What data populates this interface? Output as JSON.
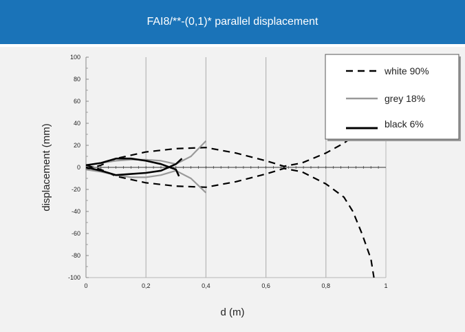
{
  "header": {
    "title": "FAI8/**-(0,1)* parallel displacement"
  },
  "colors": {
    "header_bg": "#1a73b8",
    "panel_bg": "#f2f2f2",
    "white": "#000000",
    "grey": "#999999",
    "black": "#000000"
  },
  "chart_data": {
    "type": "line",
    "title": "",
    "xlabel": "d (m)",
    "ylabel": "displacement (mm)",
    "xlim": [
      0,
      1
    ],
    "ylim": [
      -100,
      100
    ],
    "xticks": [
      "0",
      "0,2",
      "0,4",
      "0,6",
      "0,8",
      "1"
    ],
    "yticks": [
      "100",
      "80",
      "60",
      "40",
      "20",
      "0",
      "-20",
      "-40",
      "-60",
      "-80",
      "-100"
    ],
    "grid": true,
    "legend_position": "top-right",
    "series": [
      {
        "name": "white 90%",
        "style": "dashed",
        "color": "#000000",
        "segments": [
          [
            [
              0,
              -2
            ],
            [
              0.05,
              2
            ],
            [
              0.1,
              8
            ],
            [
              0.2,
              14
            ],
            [
              0.3,
              17
            ],
            [
              0.4,
              18
            ],
            [
              0.5,
              13
            ],
            [
              0.6,
              6
            ],
            [
              0.66,
              1
            ],
            [
              0.72,
              4
            ],
            [
              0.8,
              13
            ],
            [
              0.86,
              22
            ],
            [
              0.9,
              30
            ]
          ],
          [
            [
              0,
              2
            ],
            [
              0.05,
              -2
            ],
            [
              0.1,
              -8
            ],
            [
              0.2,
              -14
            ],
            [
              0.3,
              -17
            ],
            [
              0.4,
              -18
            ],
            [
              0.5,
              -13
            ],
            [
              0.6,
              -6
            ],
            [
              0.66,
              -1
            ],
            [
              0.72,
              -4
            ],
            [
              0.8,
              -15
            ],
            [
              0.86,
              -27
            ],
            [
              0.89,
              -40
            ],
            [
              0.92,
              -60
            ],
            [
              0.95,
              -83
            ],
            [
              0.96,
              -100
            ]
          ]
        ]
      },
      {
        "name": "grey 18%",
        "style": "solid",
        "color": "#999999",
        "segments": [
          [
            [
              0,
              2
            ],
            [
              0.05,
              4
            ],
            [
              0.1,
              6
            ],
            [
              0.15,
              7
            ],
            [
              0.2,
              7
            ],
            [
              0.25,
              6
            ],
            [
              0.3,
              3
            ],
            [
              0.35,
              10
            ],
            [
              0.4,
              24
            ]
          ],
          [
            [
              0,
              -2
            ],
            [
              0.05,
              -4
            ],
            [
              0.1,
              -7
            ],
            [
              0.15,
              -9
            ],
            [
              0.2,
              -9
            ],
            [
              0.25,
              -7
            ],
            [
              0.3,
              -3
            ],
            [
              0.35,
              -10
            ],
            [
              0.4,
              -23
            ]
          ]
        ]
      },
      {
        "name": "black 6%",
        "style": "solid",
        "color": "#000000",
        "segments": [
          [
            [
              0,
              2
            ],
            [
              0.05,
              4
            ],
            [
              0.1,
              8
            ],
            [
              0.15,
              8
            ],
            [
              0.2,
              6
            ],
            [
              0.25,
              3
            ],
            [
              0.3,
              -2
            ],
            [
              0.31,
              -8
            ]
          ],
          [
            [
              0,
              0
            ],
            [
              0.05,
              -3
            ],
            [
              0.1,
              -7
            ],
            [
              0.15,
              -6
            ],
            [
              0.2,
              -5
            ],
            [
              0.25,
              -3
            ],
            [
              0.3,
              3
            ],
            [
              0.32,
              8
            ]
          ]
        ]
      }
    ]
  }
}
